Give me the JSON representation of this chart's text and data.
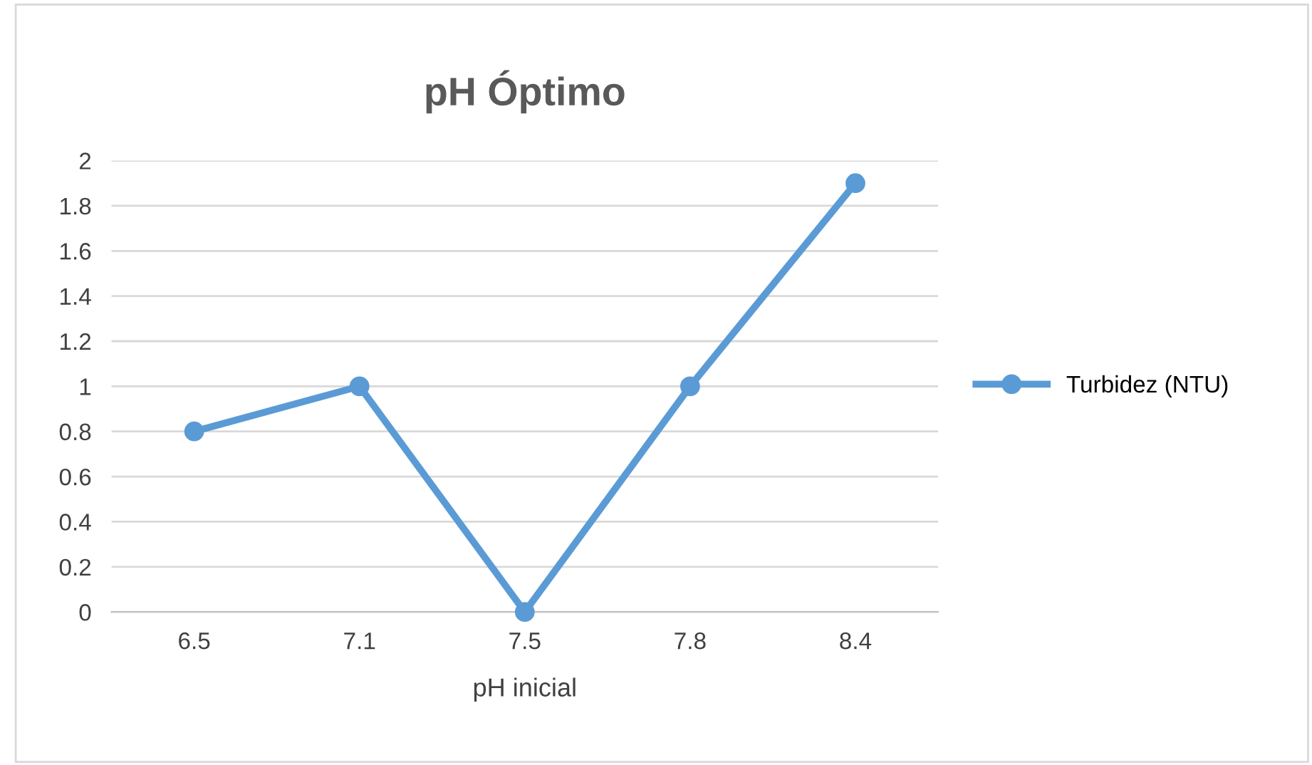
{
  "chart_data": {
    "type": "line",
    "title": "pH Óptimo",
    "xlabel": "pH inicial",
    "categories": [
      "6.5",
      "7.1",
      "7.5",
      "7.8",
      "8.4"
    ],
    "series": [
      {
        "name": "Turbidez (NTU)",
        "color": "#5b9bd5",
        "values": [
          0.8,
          1,
          0,
          1,
          1.9
        ]
      }
    ],
    "ylim": [
      0,
      2
    ],
    "yticks": [
      0,
      0.2,
      0.4,
      0.6,
      0.8,
      1,
      1.2,
      1.4,
      1.6,
      1.8,
      2
    ],
    "grid": "y",
    "legend": "right",
    "marker": "circle",
    "line_style": "solid"
  }
}
